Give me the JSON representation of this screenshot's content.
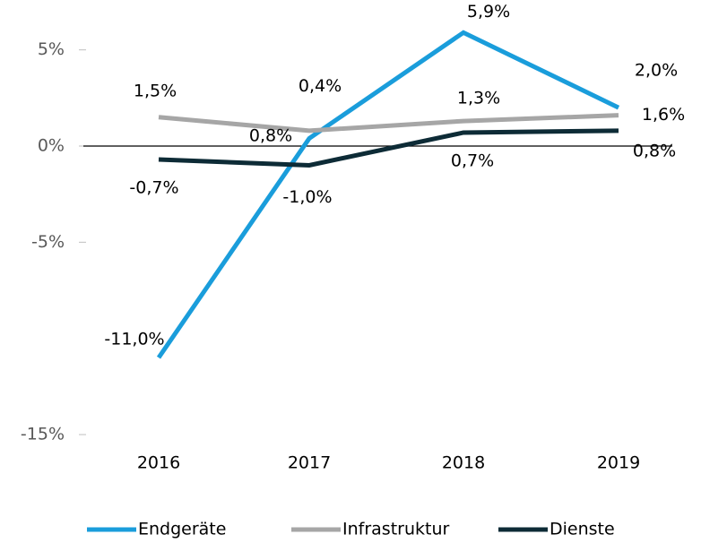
{
  "chart_data": {
    "type": "line",
    "categories": [
      "2016",
      "2017",
      "2018",
      "2019"
    ],
    "series": [
      {
        "name": "Endgeräte",
        "color": "#1a9ddb",
        "values": [
          -11.0,
          0.4,
          5.9,
          2.0
        ],
        "value_labels": [
          "-11,0%",
          "0,4%",
          "5,9%",
          "2,0%"
        ]
      },
      {
        "name": "Infrastruktur",
        "color": "#a6a6a6",
        "values": [
          1.5,
          0.8,
          1.3,
          1.6
        ],
        "value_labels": [
          "1,5%",
          "0,8%",
          "1,3%",
          "1,6%"
        ]
      },
      {
        "name": "Dienste",
        "color": "#0d2b36",
        "values": [
          -0.7,
          -1.0,
          0.7,
          0.8
        ],
        "value_labels": [
          "-0,7%",
          "-1,0%",
          "0,7%",
          "0,8%"
        ]
      }
    ],
    "ylim": [
      -15,
      7.5
    ],
    "yticks": [
      {
        "value": 5,
        "label": "5%"
      },
      {
        "value": 0,
        "label": "0%"
      },
      {
        "value": -5,
        "label": "-5%"
      },
      {
        "value": -15,
        "label": "-15%"
      }
    ],
    "legend": "bottom"
  }
}
